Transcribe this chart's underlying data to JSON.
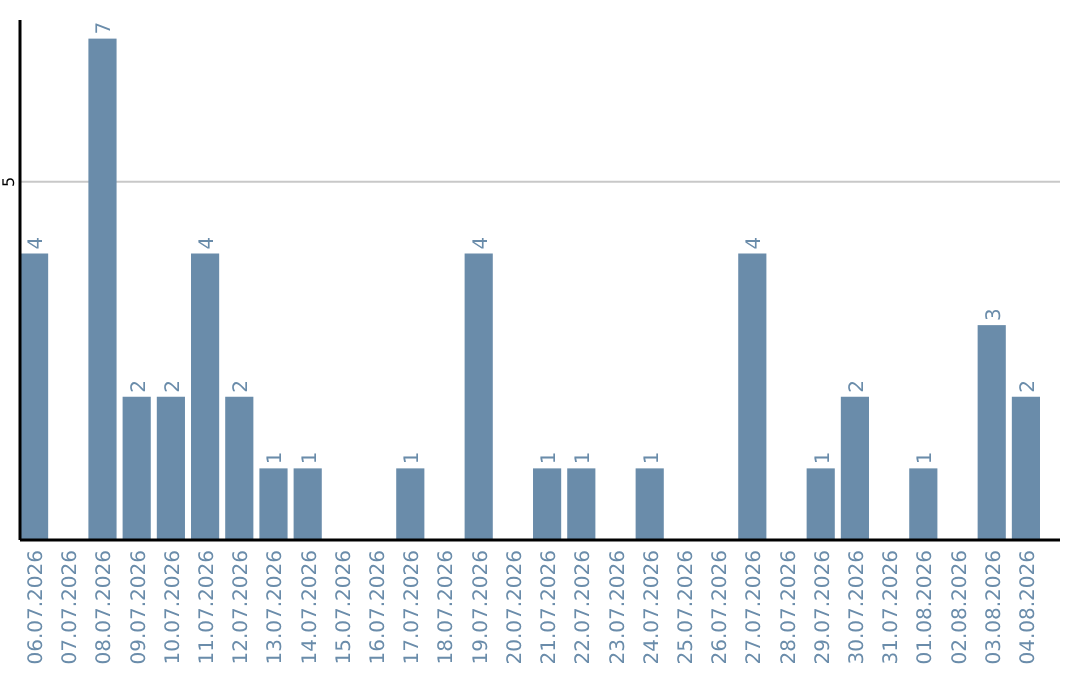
{
  "chart_data": {
    "type": "bar",
    "categories": [
      "06.07.2026",
      "07.07.2026",
      "08.07.2026",
      "09.07.2026",
      "10.07.2026",
      "11.07.2026",
      "12.07.2026",
      "13.07.2026",
      "14.07.2026",
      "15.07.2026",
      "16.07.2026",
      "17.07.2026",
      "18.07.2026",
      "19.07.2026",
      "20.07.2026",
      "21.07.2026",
      "22.07.2026",
      "23.07.2026",
      "24.07.2026",
      "25.07.2026",
      "26.07.2026",
      "27.07.2026",
      "28.07.2026",
      "29.07.2026",
      "30.07.2026",
      "31.07.2026",
      "01.08.2026",
      "02.08.2026",
      "03.08.2026",
      "04.08.2026"
    ],
    "values": [
      4,
      null,
      7,
      2,
      2,
      4,
      2,
      1,
      1,
      null,
      null,
      1,
      null,
      4,
      null,
      1,
      1,
      null,
      1,
      null,
      null,
      4,
      null,
      1,
      2,
      null,
      1,
      null,
      3,
      2
    ],
    "color": "#6a8caa",
    "ylim": [
      0,
      7.26
    ],
    "yticks": [
      5
    ],
    "grid": "y",
    "data_labels": true
  }
}
